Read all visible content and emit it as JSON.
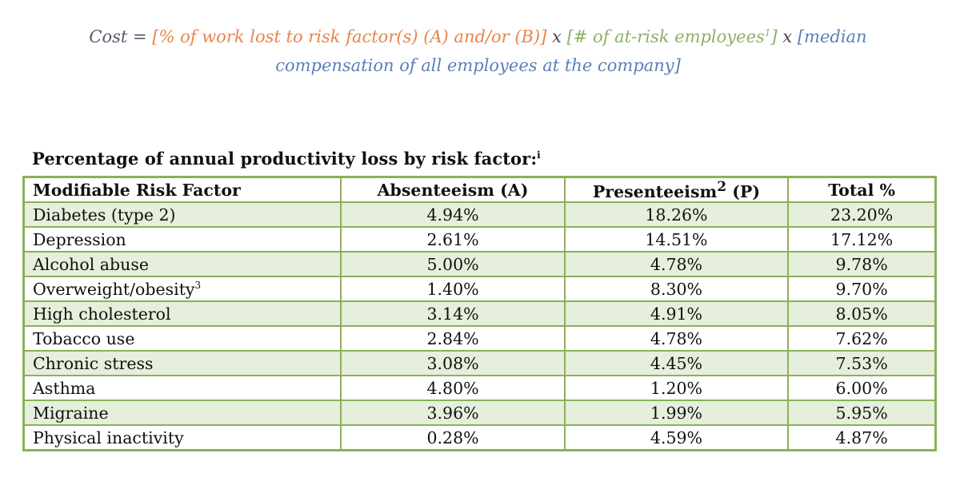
{
  "formula": {
    "cost_label": "Cost =",
    "part_a": "[% of work lost to risk factor(s) (A) and/or (B)]",
    "times1": "x",
    "part_b": "[# of at-risk employees",
    "part_b_sup": "1",
    "part_b_end": "]",
    "times2": "x",
    "part_c": "[median compensation of all employees at the company]"
  },
  "table_title": {
    "text": "Percentage of annual productivity loss by risk factor:",
    "sup": "i"
  },
  "table": {
    "headers": {
      "factor": "Modifiable Risk Factor",
      "absenteeism": "Absenteeism (A)",
      "presenteeism": "Presenteeism",
      "presenteeism_sup": "2",
      "presenteeism_end": " (P)",
      "total": "Total %"
    },
    "rows": [
      {
        "factor": "Diabetes (type 2)",
        "sup": "",
        "absenteeism": "4.94%",
        "presenteeism": "18.26%",
        "total": "23.20%"
      },
      {
        "factor": "Depression",
        "sup": "",
        "absenteeism": "2.61%",
        "presenteeism": "14.51%",
        "total": "17.12%"
      },
      {
        "factor": "Alcohol abuse",
        "sup": "",
        "absenteeism": "5.00%",
        "presenteeism": "4.78%",
        "total": "9.78%"
      },
      {
        "factor": "Overweight/obesity",
        "sup": "3",
        "absenteeism": "1.40%",
        "presenteeism": "8.30%",
        "total": "9.70%"
      },
      {
        "factor": "High cholesterol",
        "sup": "",
        "absenteeism": "3.14%",
        "presenteeism": "4.91%",
        "total": "8.05%"
      },
      {
        "factor": "Tobacco use",
        "sup": "",
        "absenteeism": "2.84%",
        "presenteeism": "4.78%",
        "total": "7.62%"
      },
      {
        "factor": "Chronic stress",
        "sup": "",
        "absenteeism": "3.08%",
        "presenteeism": "4.45%",
        "total": "7.53%"
      },
      {
        "factor": "Asthma",
        "sup": "",
        "absenteeism": "4.80%",
        "presenteeism": "1.20%",
        "total": "6.00%"
      },
      {
        "factor": "Migraine",
        "sup": "",
        "absenteeism": "3.96%",
        "presenteeism": "1.99%",
        "total": "5.95%"
      },
      {
        "factor": "Physical inactivity",
        "sup": "",
        "absenteeism": "0.28%",
        "presenteeism": "4.59%",
        "total": "4.87%"
      }
    ]
  },
  "colors": {
    "table_border": "#8ab15a",
    "row_shade": "#e6eedc",
    "formula_a": "#e8844a",
    "formula_b": "#8bb066",
    "formula_c": "#5b7fb8"
  }
}
